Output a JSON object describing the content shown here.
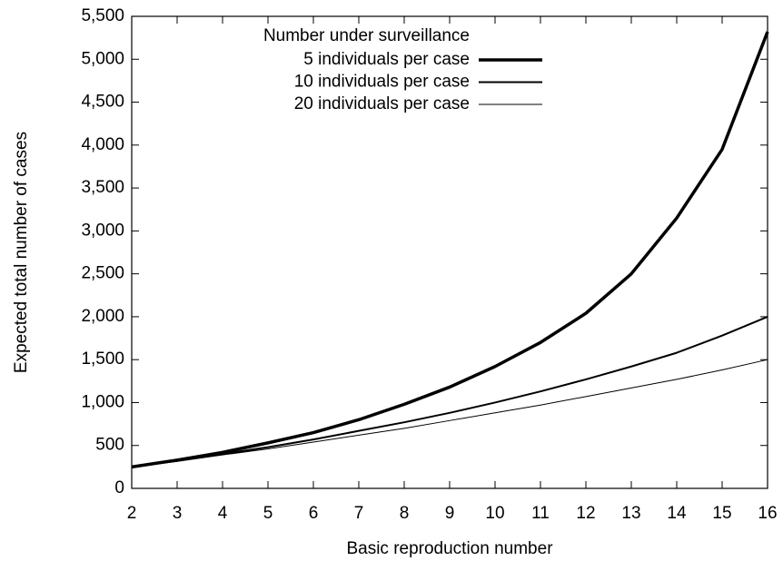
{
  "chart_data": {
    "type": "line",
    "xlabel": "Basic reproduction number",
    "ylabel": "Expected total number of cases",
    "legend_title": "Number under surveillance",
    "legend": "upper left",
    "x": [
      2,
      3,
      4,
      5,
      6,
      7,
      8,
      9,
      10,
      11,
      12,
      13,
      14,
      15,
      16
    ],
    "series": [
      {
        "name": "5 individuals per case",
        "color": "#000000",
        "line_width": 3.5,
        "values": [
          250,
          330,
          420,
          530,
          650,
          800,
          980,
          1180,
          1420,
          1700,
          2040,
          2500,
          3150,
          3950,
          5320
        ]
      },
      {
        "name": "10 individuals per case",
        "color": "#000000",
        "line_width": 2,
        "values": [
          250,
          320,
          400,
          480,
          570,
          670,
          770,
          880,
          1000,
          1130,
          1270,
          1420,
          1580,
          1780,
          2000
        ]
      },
      {
        "name": "20 individuals per case",
        "color": "#000000",
        "line_width": 1,
        "values": [
          250,
          315,
          390,
          460,
          540,
          620,
          700,
          790,
          880,
          970,
          1070,
          1170,
          1270,
          1380,
          1500
        ]
      }
    ],
    "xlim": [
      2,
      16
    ],
    "xticks": [
      2,
      3,
      4,
      5,
      6,
      7,
      8,
      9,
      10,
      11,
      12,
      13,
      14,
      15,
      16
    ],
    "ylim": [
      0,
      5500
    ],
    "yticks": [
      0,
      500,
      {
        "value": 1000,
        "label": "1,000"
      },
      {
        "value": 1500,
        "label": "1,500"
      },
      {
        "value": 2000,
        "label": "2,000"
      },
      {
        "value": 2500,
        "label": "2,500"
      },
      {
        "value": 3000,
        "label": "3,000"
      },
      {
        "value": 3500,
        "label": "3,500"
      },
      {
        "value": 4000,
        "label": "4,000"
      },
      {
        "value": 4500,
        "label": "4,500"
      },
      {
        "value": 5000,
        "label": "5,000"
      },
      {
        "value": 5500,
        "label": "5,500"
      }
    ]
  }
}
